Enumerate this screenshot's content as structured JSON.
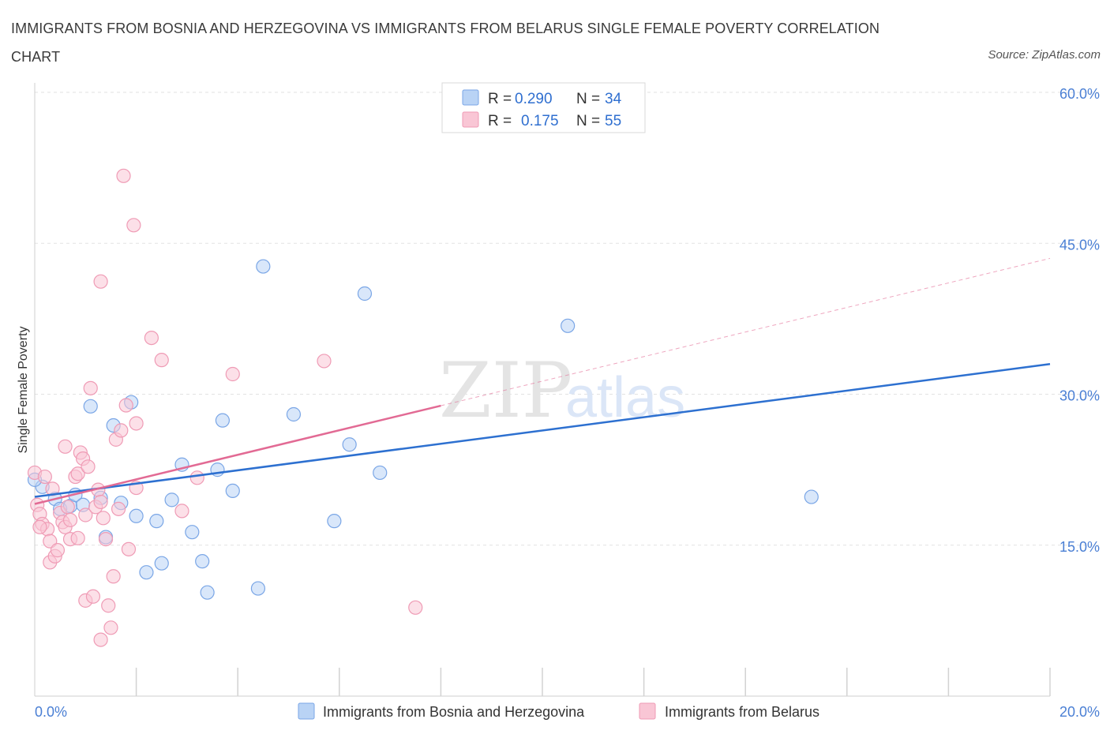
{
  "title": "IMMIGRANTS FROM BOSNIA AND HERZEGOVINA VS IMMIGRANTS FROM BELARUS SINGLE FEMALE POVERTY CORRELATION CHART",
  "source": "Source: ZipAtlas.com",
  "watermark": {
    "zip": "ZIP",
    "atlas": "atlas"
  },
  "colors": {
    "blue_fill": "#b9d3f5",
    "blue_stroke": "#7aa6e6",
    "blue_line": "#2d70d0",
    "pink_fill": "#f9c6d5",
    "pink_stroke": "#ef9bb5",
    "pink_line": "#e26a94",
    "grid": "#e2e2e2",
    "tick_text": "#4a7fd4"
  },
  "legend": {
    "rows": [
      {
        "r_label": "R =",
        "r_value": "0.290",
        "n_label": "N =",
        "n_value": "34"
      },
      {
        "r_label": "R =",
        "r_value": "0.175",
        "n_label": "N =",
        "n_value": "55"
      }
    ]
  },
  "chart_data": {
    "type": "scatter",
    "title": "IMMIGRANTS FROM BOSNIA AND HERZEGOVINA VS IMMIGRANTS FROM BELARUS SINGLE FEMALE POVERTY CORRELATION CHART",
    "xlabel": "",
    "ylabel": "Single Female Poverty",
    "xlim": [
      0,
      20
    ],
    "ylim": [
      0,
      60
    ],
    "x_tick_labels": [
      {
        "value": 0,
        "label": "0.0%"
      },
      {
        "value": 20,
        "label": "20.0%"
      }
    ],
    "y_tick_labels": [
      {
        "value": 15,
        "label": "15.0%"
      },
      {
        "value": 30,
        "label": "30.0%"
      },
      {
        "value": 45,
        "label": "45.0%"
      },
      {
        "value": 60,
        "label": "60.0%"
      }
    ],
    "y_grid": [
      15,
      30,
      45,
      60
    ],
    "x_minor_ticks": [
      2,
      4,
      6,
      8,
      10,
      12,
      14,
      16,
      18,
      20
    ],
    "series": [
      {
        "name": "Immigrants from Bosnia and Herzegovina",
        "color": "blue",
        "R": 0.29,
        "N": 34,
        "trend": {
          "x0": 0,
          "y0": 19.8,
          "x1": 20,
          "y1": 33.0,
          "solid_to": 20
        },
        "points": [
          [
            0.15,
            20.8
          ],
          [
            0.4,
            19.6
          ],
          [
            0.5,
            18.6
          ],
          [
            0.7,
            18.9
          ],
          [
            0.8,
            20.0
          ],
          [
            0.95,
            19.0
          ],
          [
            1.1,
            28.8
          ],
          [
            1.3,
            19.7
          ],
          [
            1.4,
            15.8
          ],
          [
            1.55,
            26.9
          ],
          [
            1.7,
            19.2
          ],
          [
            1.9,
            29.2
          ],
          [
            2.0,
            17.9
          ],
          [
            2.2,
            12.3
          ],
          [
            2.4,
            17.4
          ],
          [
            2.5,
            13.2
          ],
          [
            2.7,
            19.5
          ],
          [
            2.9,
            23.0
          ],
          [
            3.1,
            16.3
          ],
          [
            3.3,
            13.4
          ],
          [
            3.4,
            10.3
          ],
          [
            3.6,
            22.5
          ],
          [
            3.7,
            27.4
          ],
          [
            3.9,
            20.4
          ],
          [
            4.4,
            10.7
          ],
          [
            4.5,
            42.7
          ],
          [
            5.1,
            28.0
          ],
          [
            5.9,
            17.4
          ],
          [
            6.2,
            25.0
          ],
          [
            6.5,
            40.0
          ],
          [
            6.8,
            22.2
          ],
          [
            10.5,
            36.8
          ],
          [
            15.3,
            19.8
          ],
          [
            0.0,
            21.5
          ]
        ]
      },
      {
        "name": "Immigrants from Belarus",
        "color": "pink",
        "R": 0.175,
        "N": 55,
        "trend": {
          "x0": 0,
          "y0": 19.1,
          "x1": 20,
          "y1": 43.5,
          "solid_to": 8.0
        },
        "points": [
          [
            0.0,
            22.2
          ],
          [
            0.05,
            19.0
          ],
          [
            0.1,
            18.1
          ],
          [
            0.15,
            17.1
          ],
          [
            0.2,
            21.8
          ],
          [
            0.25,
            16.6
          ],
          [
            0.3,
            15.4
          ],
          [
            0.3,
            13.3
          ],
          [
            0.35,
            20.6
          ],
          [
            0.4,
            13.9
          ],
          [
            0.45,
            14.5
          ],
          [
            0.5,
            18.2
          ],
          [
            0.55,
            17.3
          ],
          [
            0.6,
            16.8
          ],
          [
            0.6,
            24.8
          ],
          [
            0.65,
            18.8
          ],
          [
            0.7,
            17.5
          ],
          [
            0.7,
            15.6
          ],
          [
            0.8,
            21.8
          ],
          [
            0.85,
            22.1
          ],
          [
            0.85,
            15.7
          ],
          [
            0.9,
            24.2
          ],
          [
            0.95,
            23.6
          ],
          [
            1.0,
            18.0
          ],
          [
            1.0,
            9.5
          ],
          [
            1.05,
            22.8
          ],
          [
            1.1,
            30.6
          ],
          [
            1.15,
            9.9
          ],
          [
            1.2,
            18.8
          ],
          [
            1.25,
            20.5
          ],
          [
            1.3,
            41.2
          ],
          [
            1.3,
            19.3
          ],
          [
            1.3,
            5.6
          ],
          [
            1.35,
            17.7
          ],
          [
            1.4,
            15.6
          ],
          [
            1.45,
            9.0
          ],
          [
            1.5,
            6.8
          ],
          [
            1.55,
            11.9
          ],
          [
            1.6,
            25.5
          ],
          [
            1.65,
            18.6
          ],
          [
            1.7,
            26.4
          ],
          [
            1.75,
            51.7
          ],
          [
            1.8,
            28.9
          ],
          [
            1.85,
            14.6
          ],
          [
            1.95,
            46.8
          ],
          [
            2.0,
            27.1
          ],
          [
            2.0,
            20.7
          ],
          [
            2.3,
            35.6
          ],
          [
            2.5,
            33.4
          ],
          [
            2.9,
            18.4
          ],
          [
            3.2,
            21.7
          ],
          [
            3.9,
            32.0
          ],
          [
            5.7,
            33.3
          ],
          [
            7.5,
            8.8
          ],
          [
            0.1,
            16.8
          ]
        ]
      }
    ]
  },
  "bottom_legend": [
    {
      "label": "Immigrants from Bosnia and Herzegovina",
      "color": "blue"
    },
    {
      "label": "Immigrants from Belarus",
      "color": "pink"
    }
  ]
}
